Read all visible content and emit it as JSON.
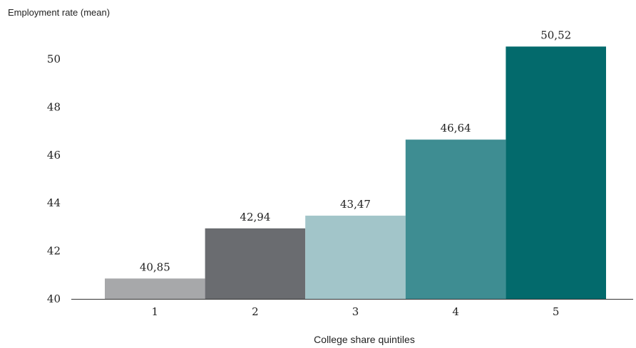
{
  "chart_data": {
    "type": "bar",
    "title": "",
    "ylabel": "Employment rate (mean)",
    "xlabel": "College share quintiles",
    "categories": [
      "1",
      "2",
      "3",
      "4",
      "5"
    ],
    "values": [
      40.85,
      42.94,
      43.47,
      46.64,
      50.52
    ],
    "value_labels": [
      "40,85",
      "42,94",
      "43,47",
      "46,64",
      "50,52"
    ],
    "yticks": [
      40,
      42,
      44,
      46,
      48,
      50
    ],
    "ylim": [
      40,
      51.6
    ],
    "grid": false,
    "legend": "none",
    "colors": [
      "#a7a8aa",
      "#6a6c70",
      "#a2c5c9",
      "#3e8d92",
      "#036a6c"
    ]
  }
}
